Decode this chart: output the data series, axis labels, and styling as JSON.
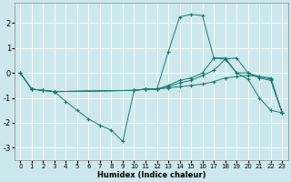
{
  "xlabel": "Humidex (Indice chaleur)",
  "bg_color": "#cde8ec",
  "grid_color": "#ffffff",
  "line_color": "#1a7a6e",
  "xlim": [
    -0.5,
    23.5
  ],
  "ylim": [
    -3.5,
    2.8
  ],
  "yticks": [
    -3,
    -2,
    -1,
    0,
    1,
    2
  ],
  "xticks": [
    0,
    1,
    2,
    3,
    4,
    5,
    6,
    7,
    8,
    9,
    10,
    11,
    12,
    13,
    14,
    15,
    16,
    17,
    18,
    19,
    20,
    21,
    22,
    23
  ],
  "lines": [
    {
      "x": [
        0,
        1,
        2,
        3,
        4,
        5,
        6,
        7,
        8,
        9,
        10,
        11,
        12,
        13,
        14,
        15,
        16,
        17,
        18,
        19,
        20,
        21,
        22,
        23
      ],
      "y": [
        0,
        -0.65,
        -0.7,
        -0.75,
        -1.15,
        -1.5,
        -1.85,
        -2.1,
        -2.3,
        -2.75,
        -0.7,
        -0.65,
        -0.65,
        0.85,
        2.25,
        2.35,
        2.3,
        0.6,
        0.55,
        0.0,
        -0.25,
        -1.0,
        -1.5,
        -1.6
      ]
    },
    {
      "x": [
        0,
        1,
        2,
        3,
        10,
        11,
        12,
        13,
        14,
        15,
        16,
        17,
        18,
        19,
        20,
        21,
        22,
        23
      ],
      "y": [
        0,
        -0.65,
        -0.7,
        -0.75,
        -0.7,
        -0.65,
        -0.65,
        -0.6,
        -0.55,
        -0.5,
        -0.45,
        -0.35,
        -0.2,
        -0.15,
        -0.1,
        -0.15,
        -0.2,
        -1.6
      ]
    },
    {
      "x": [
        0,
        1,
        2,
        3,
        10,
        11,
        12,
        13,
        14,
        15,
        16,
        17,
        18,
        19,
        20,
        21,
        22,
        23
      ],
      "y": [
        0,
        -0.65,
        -0.7,
        -0.75,
        -0.7,
        -0.65,
        -0.65,
        -0.55,
        -0.4,
        -0.3,
        -0.1,
        0.1,
        0.55,
        0.6,
        0.0,
        -0.15,
        -0.25,
        -1.6
      ]
    },
    {
      "x": [
        0,
        1,
        2,
        3,
        10,
        11,
        12,
        13,
        14,
        15,
        16,
        17,
        18,
        19,
        20,
        21,
        22,
        23
      ],
      "y": [
        0,
        -0.65,
        -0.7,
        -0.75,
        -0.7,
        -0.65,
        -0.65,
        -0.5,
        -0.3,
        -0.2,
        0.0,
        0.6,
        0.6,
        0.0,
        0.0,
        -0.2,
        -0.3,
        -1.6
      ]
    }
  ]
}
